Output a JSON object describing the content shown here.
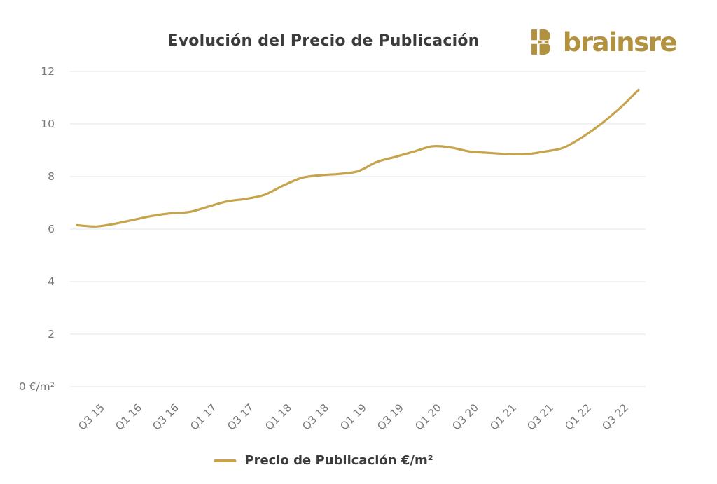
{
  "header": {
    "title": "Evolución del Precio de Publicación",
    "logo": {
      "text": "brainsre",
      "icon": "brainsre-b-mark"
    }
  },
  "legend": {
    "label": "Precio de Publicación €/m²"
  },
  "colors": {
    "line": "#c7a44c",
    "logo_gold": "#b2913f",
    "grid": "#e3e5e8",
    "tick_text": "#76777b",
    "title_text": "#3b3b3b"
  },
  "chart_data": {
    "type": "line",
    "title": "Evolución del Precio de Publicación",
    "xlabel": "",
    "ylabel": "€/m²",
    "ylim": [
      0,
      12
    ],
    "grid": "horizontal",
    "legend_position": "bottom",
    "categories": [
      "Q2 15",
      "Q3 15",
      "Q4 15",
      "Q1 16",
      "Q2 16",
      "Q3 16",
      "Q4 16",
      "Q1 17",
      "Q2 17",
      "Q3 17",
      "Q4 17",
      "Q1 18",
      "Q2 18",
      "Q3 18",
      "Q4 18",
      "Q1 19",
      "Q2 19",
      "Q3 19",
      "Q4 19",
      "Q1 20",
      "Q2 20",
      "Q3 20",
      "Q4 20",
      "Q1 21",
      "Q2 21",
      "Q3 21",
      "Q4 21",
      "Q1 22",
      "Q2 22",
      "Q3 22",
      "Q4 22"
    ],
    "series": [
      {
        "name": "Precio de Publicación €/m²",
        "color": "#c7a44c",
        "values": [
          6.15,
          6.1,
          6.2,
          6.35,
          6.5,
          6.6,
          6.65,
          6.85,
          7.05,
          7.15,
          7.3,
          7.65,
          7.95,
          8.05,
          8.1,
          8.2,
          8.55,
          8.75,
          8.95,
          9.15,
          9.1,
          8.95,
          8.9,
          8.85,
          8.85,
          8.95,
          9.1,
          9.5,
          10.0,
          10.6,
          11.3
        ]
      }
    ],
    "x_tick_labels": [
      "Q3 15",
      "Q1 16",
      "Q3 16",
      "Q1 17",
      "Q3 17",
      "Q1 18",
      "Q3 18",
      "Q1 19",
      "Q3 19",
      "Q1 20",
      "Q3 20",
      "Q1 21",
      "Q3 21",
      "Q1 22",
      "Q3 22"
    ],
    "x_tick_every": 2,
    "y_ticks": [
      0,
      2,
      4,
      6,
      8,
      10,
      12
    ],
    "y_tick_labels": [
      "0 €/m²",
      "2",
      "4",
      "6",
      "8",
      "10",
      "12"
    ]
  }
}
